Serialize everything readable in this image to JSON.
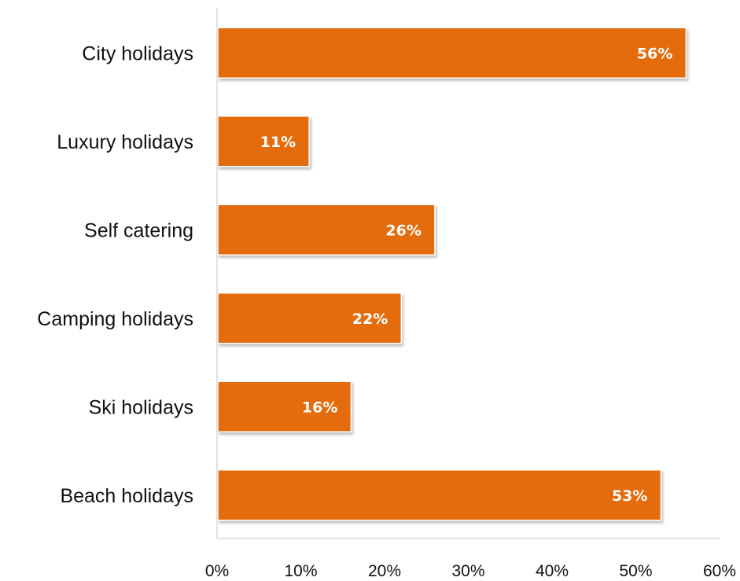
{
  "chart_data": {
    "type": "bar",
    "orientation": "horizontal",
    "title": "",
    "xlabel": "",
    "ylabel": "",
    "categories": [
      "City holidays",
      "Luxury holidays",
      "Self catering",
      "Camping holidays",
      "Ski holidays",
      "Beach holidays"
    ],
    "values": [
      56,
      11,
      26,
      22,
      16,
      53
    ],
    "data_labels": [
      "56%",
      "11%",
      "26%",
      "22%",
      "16%",
      "53%"
    ],
    "xlim": [
      0,
      60
    ],
    "x_ticks": [
      0,
      10,
      20,
      30,
      40,
      50,
      60
    ],
    "x_tick_labels": [
      "0%",
      "10%",
      "20%",
      "30%",
      "40%",
      "50%",
      "60%"
    ],
    "grid": false,
    "legend": "none",
    "bar_color": "#E46C0A",
    "data_label_color": "#FFFFFF",
    "axis_color": "#D9D9D9"
  }
}
